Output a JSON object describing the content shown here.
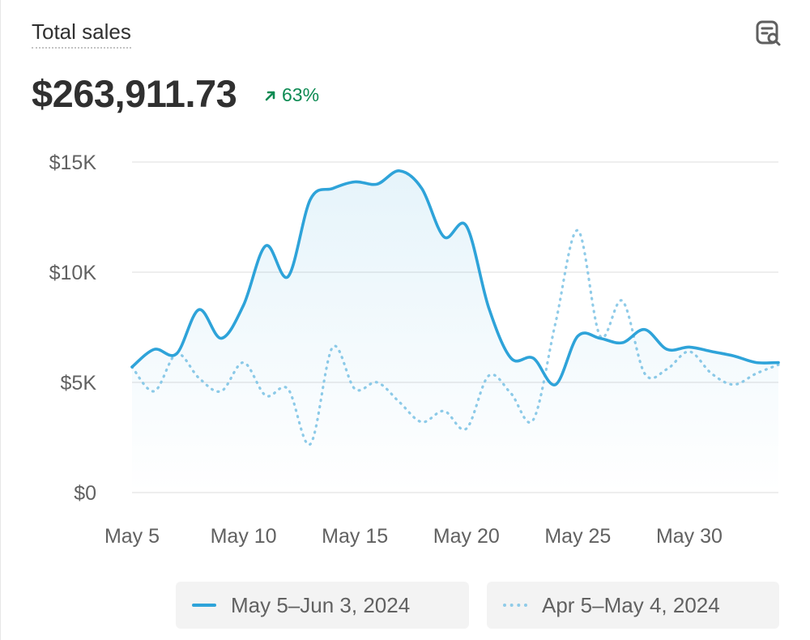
{
  "header": {
    "title": "Total sales",
    "total_value": "$263,911.73",
    "change_percent": "63%",
    "change_direction": "up",
    "icons": {
      "title_action": "report-search-icon",
      "change": "arrow-up-right-icon"
    }
  },
  "colors": {
    "current": "#2ea3d9",
    "previous": "#8fcbe8",
    "positive": "#0c8a52",
    "grid": "#e3e3e3",
    "axis_text": "#616161"
  },
  "legend": {
    "current_label": "May 5–Jun 3, 2024",
    "previous_label": "Apr 5–May 4, 2024"
  },
  "chart_data": {
    "type": "area",
    "x": [
      "May 5",
      "May 6",
      "May 7",
      "May 8",
      "May 9",
      "May 10",
      "May 11",
      "May 12",
      "May 13",
      "May 14",
      "May 15",
      "May 16",
      "May 17",
      "May 18",
      "May 19",
      "May 20",
      "May 21",
      "May 22",
      "May 23",
      "May 24",
      "May 25",
      "May 26",
      "May 27",
      "May 28",
      "May 29",
      "May 30",
      "May 31",
      "Jun 1",
      "Jun 2",
      "Jun 3"
    ],
    "x_ticks": [
      "May 5",
      "May 10",
      "May 15",
      "May 20",
      "May 25",
      "May 30"
    ],
    "y_ticks": [
      "$0",
      "$5K",
      "$10K",
      "$15K"
    ],
    "ylim": [
      0,
      15000
    ],
    "grid": true,
    "legend_position": "bottom",
    "series": [
      {
        "name": "May 5–Jun 3, 2024",
        "style": "solid",
        "fill": true,
        "values": [
          5700,
          6500,
          6300,
          8300,
          7000,
          8500,
          11200,
          9800,
          13300,
          13800,
          14100,
          14000,
          14600,
          13800,
          11600,
          12100,
          8400,
          6100,
          6100,
          4900,
          7100,
          7000,
          6800,
          7400,
          6500,
          6600,
          6400,
          6200,
          5900,
          5900
        ]
      },
      {
        "name": "Apr 5–May 4, 2024",
        "style": "dotted",
        "fill": false,
        "values": [
          5700,
          4600,
          6300,
          5200,
          4600,
          5900,
          4400,
          4700,
          2200,
          6600,
          4700,
          5000,
          4100,
          3200,
          3700,
          2900,
          5300,
          4500,
          3300,
          7700,
          11900,
          7100,
          8700,
          5400,
          5600,
          6400,
          5400,
          4900,
          5400,
          5800
        ]
      }
    ]
  }
}
